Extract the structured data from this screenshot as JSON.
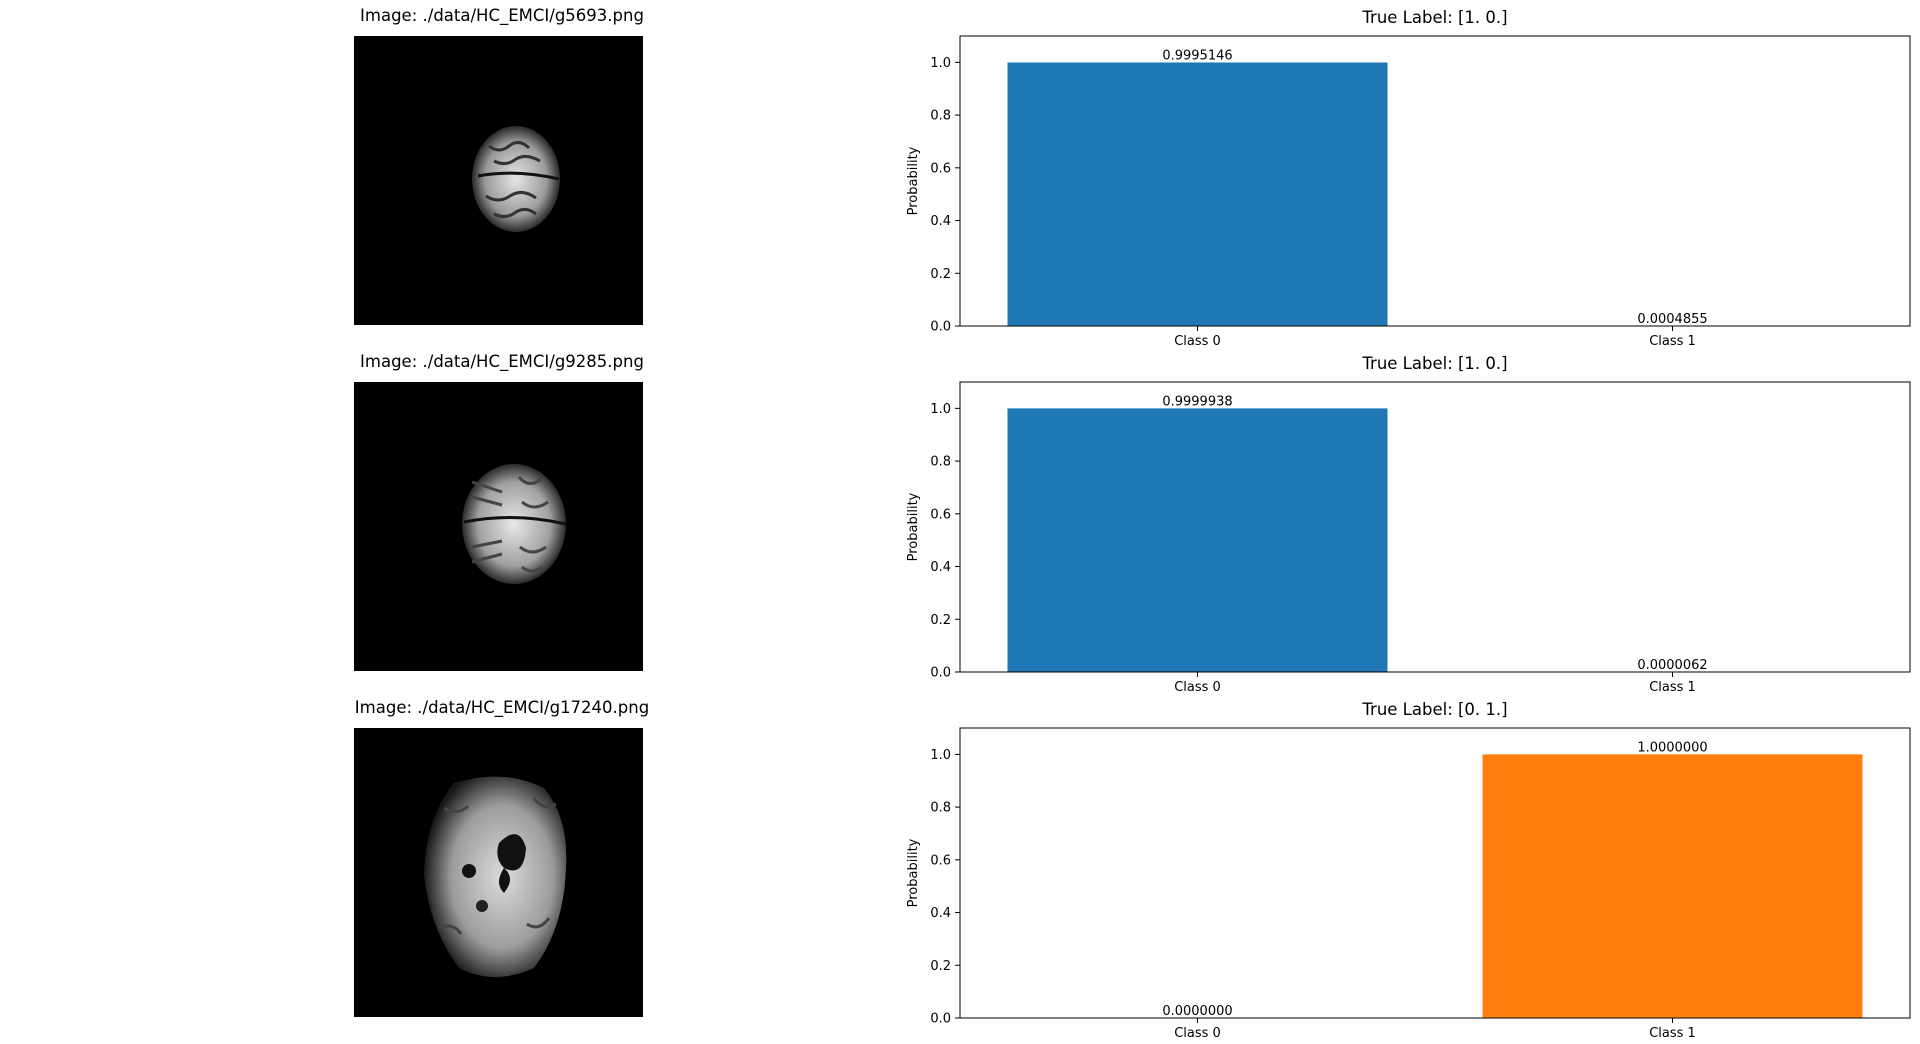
{
  "chart_data": [
    {
      "type": "bar",
      "image_title": "Image: ./data/HC_EMCI/g5693.png",
      "title": "True Label: [1. 0.]",
      "ylabel": "Probability",
      "categories": [
        "Class 0",
        "Class 1"
      ],
      "values": [
        0.9995146,
        0.0004855
      ],
      "value_labels": [
        "0.9995146",
        "0.0004855"
      ],
      "colors": [
        "#1f77b4",
        "#ff7f0e"
      ],
      "ylim": [
        0,
        1.1
      ],
      "yticks": [
        "0.0",
        "0.2",
        "0.4",
        "0.6",
        "0.8",
        "1.0"
      ],
      "grid": false
    },
    {
      "type": "bar",
      "image_title": "Image: ./data/HC_EMCI/g9285.png",
      "title": "True Label: [1. 0.]",
      "ylabel": "Probability",
      "categories": [
        "Class 0",
        "Class 1"
      ],
      "values": [
        0.9999938,
        6.2e-06
      ],
      "value_labels": [
        "0.9999938",
        "0.0000062"
      ],
      "colors": [
        "#1f77b4",
        "#ff7f0e"
      ],
      "ylim": [
        0,
        1.1
      ],
      "yticks": [
        "0.0",
        "0.2",
        "0.4",
        "0.6",
        "0.8",
        "1.0"
      ],
      "grid": false
    },
    {
      "type": "bar",
      "image_title": "Image: ./data/HC_EMCI/g17240.png",
      "title": "True Label: [0. 1.]",
      "ylabel": "Probability",
      "categories": [
        "Class 0",
        "Class 1"
      ],
      "values": [
        0.0,
        1.0
      ],
      "value_labels": [
        "0.0000000",
        "1.0000000"
      ],
      "colors": [
        "#1f77b4",
        "#ff7f0e"
      ],
      "ylim": [
        0,
        1.1
      ],
      "yticks": [
        "0.0",
        "0.2",
        "0.4",
        "0.6",
        "0.8",
        "1.0"
      ],
      "grid": false
    }
  ]
}
